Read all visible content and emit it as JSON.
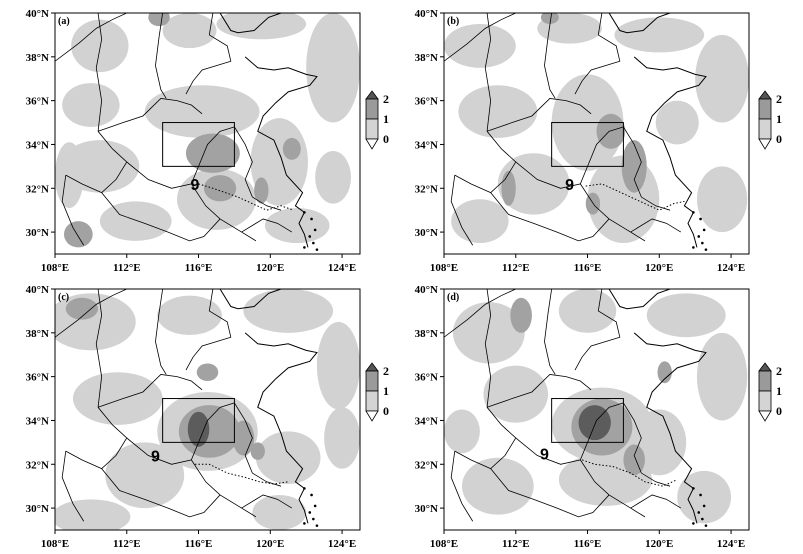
{
  "panels": [
    {
      "label": "(a)"
    },
    {
      "label": "(b)"
    },
    {
      "label": "(c)"
    },
    {
      "label": "(d)"
    }
  ],
  "lat_ticks": [
    "30°N",
    "32°N",
    "34°N",
    "36°N",
    "38°N",
    "40°N"
  ],
  "lon_ticks": [
    "108°E",
    "112°E",
    "116°E",
    "120°E",
    "124°E"
  ],
  "colorbar": {
    "labels": [
      "2",
      "1",
      "0"
    ],
    "colors": [
      "#555555",
      "#9a9a9a",
      "#d4d4d4",
      "#ffffff"
    ]
  },
  "shading": {
    "light": "#d2d2d2",
    "mid": "#a2a2a2",
    "dark": "#5c5c5c"
  },
  "chart_data": {
    "type": "heatmap",
    "lon_range": [
      108,
      125
    ],
    "lat_range": [
      29,
      40
    ],
    "levels": [
      0,
      1,
      2
    ],
    "box_region": {
      "lon": [
        114,
        118
      ],
      "lat": [
        33,
        35
      ]
    },
    "typhoon_symbol": "9"
  }
}
